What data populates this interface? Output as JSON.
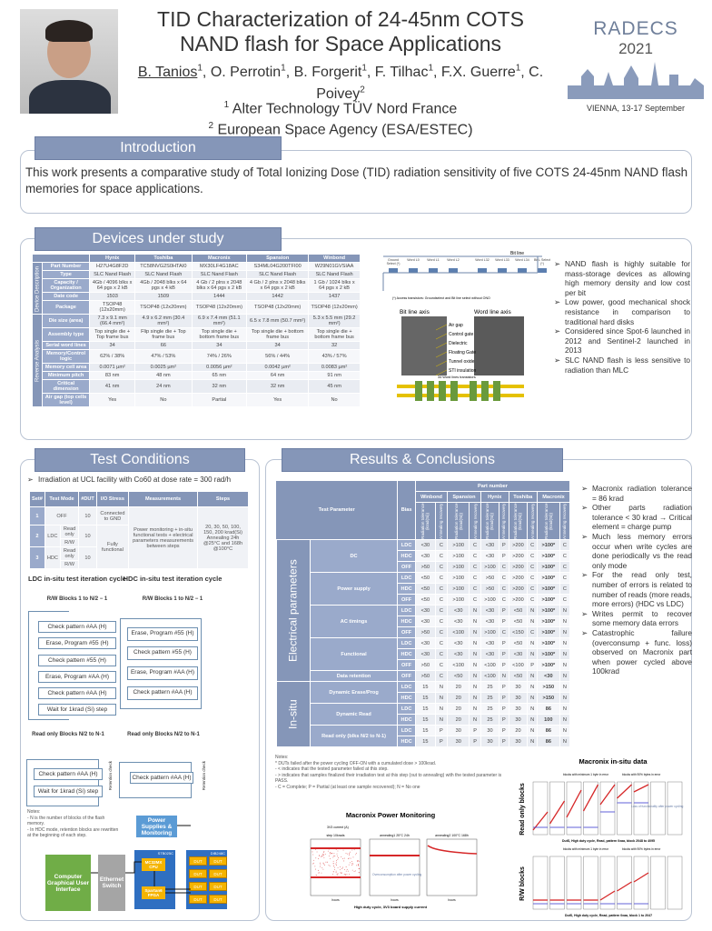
{
  "header": {
    "title": "TID Characterization of 24-45nm COTS NAND flash for Space Applications",
    "authors": [
      {
        "name": "B. Tanios",
        "sup": "1"
      },
      {
        "name": "O. Perrotin",
        "sup": "1"
      },
      {
        "name": "B. Forgerit",
        "sup": "1"
      },
      {
        "name": "F. Tilhac",
        "sup": "1"
      },
      {
        "name": "F.X. Guerre",
        "sup": "1"
      },
      {
        "name": "C. Poivey",
        "sup": "2"
      }
    ],
    "affiliations": [
      {
        "sup": "1",
        "name": "Alter Technology TÜV Nord France"
      },
      {
        "sup": "2",
        "name": "European Space Agency (ESA/ESTEC)"
      }
    ],
    "conference": {
      "name": "RADECS",
      "year": "2021",
      "location": "VIENNA, 13-17 September"
    }
  },
  "intro": {
    "heading": "Introduction",
    "text": "This work presents a comparative study of Total Ionizing Dose (TID) radiation sensitivity of five COTS 24-45nm NAND flash memories for space applications."
  },
  "devices": {
    "heading": "Devices under study",
    "columns": [
      "Hynix",
      "Toshiba",
      "Macronix",
      "Spansion",
      "Winbond"
    ],
    "sections": [
      {
        "label": "Device Description",
        "rows": [
          {
            "label": "Part Number",
            "values": [
              "H27U4G8F2D",
              "TC58NVG2S0HTAI0",
              "MX30LF4G18AC",
              "S34ML04G200TFI00",
              "W29N01GVSIAA"
            ]
          },
          {
            "label": "Type",
            "values": [
              "SLC Nand Flash",
              "SLC Nand Flash",
              "SLC Nand Flash",
              "SLC Nand Flash",
              "SLC Nand Flash"
            ]
          },
          {
            "label": "Capacity / Organization",
            "values": [
              "4Gb / 4096 blks x 64 pgs x 2 kB",
              "4Gb / 2048 blks x 64 pgs x 4 kB",
              "4 Gb / 2 plns x 2048 blks x 64 pgs x 2 kB",
              "4 Gb / 2 plns x 2048 blks x 64 pgs x 2 kB",
              "1 Gb / 1024 blks x 64 pgs x 2 kB"
            ]
          },
          {
            "label": "Date code",
            "values": [
              "1503",
              "1509",
              "1444",
              "1442",
              "1437"
            ]
          },
          {
            "label": "Package",
            "values": [
              "TSOP48 (12x20mm)",
              "TSOP48 (12x20mm)",
              "TSOP48 (12x20mm)",
              "TSOP48 (12x20mm)",
              "TSOP48 (12x20mm)"
            ]
          }
        ]
      },
      {
        "label": "Reverse Analysis",
        "rows": [
          {
            "label": "Die size (area)",
            "values": [
              "7.3 x 9.1 mm (66.4 mm²)",
              "4.9 x 6.2 mm (30.4 mm²)",
              "6.9 x 7.4 mm (51.1 mm²)",
              "6.5 x 7.8 mm (50.7 mm²)",
              "5.3 x 5.5 mm (29.2 mm²)"
            ]
          },
          {
            "label": "Assembly type",
            "values": [
              "Top single die + Top frame bus",
              "Flip single die + Top frame bus",
              "Top single die + bottom frame bus",
              "Top single die + bottom frame bus",
              "Top single die + bottom frame bus"
            ]
          },
          {
            "label": "Serial word lines",
            "values": [
              "34",
              "66",
              "34",
              "34",
              "32"
            ]
          },
          {
            "label": "Memory/Control logic",
            "values": [
              "62% / 38%",
              "47% / 53%",
              "74% / 26%",
              "56% / 44%",
              "43% / 57%"
            ]
          },
          {
            "label": "Memory cell area",
            "values": [
              "0.0071 µm²",
              "0.0025 µm²",
              "0.0056 µm²",
              "0.0042 µm²",
              "0.0083 µm²"
            ]
          },
          {
            "label": "Minimum pitch",
            "values": [
              "83 nm",
              "48 nm",
              "65 nm",
              "64 nm",
              "91 nm"
            ]
          },
          {
            "label": "Critical dimension",
            "values": [
              "41 nm",
              "24 nm",
              "32 nm",
              "32 nm",
              "45 nm"
            ]
          },
          {
            "label": "Air gap (top cells level)",
            "values": [
              "Yes",
              "No",
              "Partial",
              "Yes",
              "No"
            ]
          }
        ]
      }
    ],
    "figure": {
      "bit_line": "Bit line",
      "cells": [
        "Ground Select (*)",
        "Word L0",
        "Word L1",
        "Word L2",
        "Word L32",
        "Word L33",
        "Word L34",
        "Bit L Select (*)"
      ],
      "note": "(*) Access transistors: Groundselect and Bit line select without ONO",
      "bl_axis": "Bit line axis",
      "wl_axis": "Word line axis",
      "layers": [
        "Air gap",
        "Control gate",
        "Dielectric",
        "Floating Gate",
        "Tunnel oxide",
        "STI insulation"
      ],
      "bottom_label": "34 Word lines transistors"
    },
    "bullets": [
      "NAND flash is highly suitable for mass-storage devices as allowing high memory density and low cost per bit",
      "Low power, good mechanical shock resistance in comparison to traditional hard disks",
      "Considered since Spot-6 launched in 2012 and Sentinel-2 launched in 2013",
      "SLC NAND flash is less sensitive to radiation than MLC"
    ]
  },
  "test": {
    "heading": "Test Conditions",
    "bullet": "Irradiation at UCL facility with Co60 at dose rate = 300 rad/h",
    "table": {
      "headers": [
        "Set#",
        "Test Mode",
        "#DUT",
        "I/O Stress",
        "Measurements",
        "Steps"
      ],
      "set1": "1",
      "set2": "2",
      "set3": "3",
      "off": "OFF",
      "ldc": "LDC",
      "hdc": "HDC",
      "read_only": "Read only",
      "rw": "R/W",
      "dut1": "10",
      "dut2": "10",
      "dut3": "10",
      "io1": "Connected to GND",
      "io2": "Fully functional",
      "meas": "Power monitoring + in-situ functional tests + electrical parameters measurements between steps",
      "steps": "20, 30, 50, 100, 150, 200 krad(Si) Annealing 24h @25°C and 168h @100°C"
    },
    "ldc_title": "LDC in-situ test iteration cycle",
    "hdc_title": "HDC in-situ test iteration cycle",
    "rw_blocks": "R/W Blocks 1 to N/2 − 1",
    "ro_blocks": "Read only Blocks N/2 to N-1",
    "ldc_steps": [
      "Check pattern #AA (H)",
      "Erase, Program #55 (H)",
      "Check pattern #55 (H)",
      "Erase, Program #AA (H)",
      "Check pattern #AA (H)",
      "Wait for 1krad (Si) step"
    ],
    "hdc_steps": [
      "Erase, Program #55 (H)",
      "Check pattern #55 (H)",
      "Erase, Program #AA (H)",
      "Check pattern #AA (H)"
    ],
    "ldc_ro": [
      "Check pattern #AA (H)",
      "Wait for 1krad (Si) step"
    ],
    "hdc_ro": [
      "Check pattern #AA (H)"
    ],
    "retention": "Retention check",
    "notes_title": "Notes:",
    "notes": [
      "N is the number of blocks of the flash memory.",
      "In HDC mode, retention blocks are rewritten at the beginning of each step."
    ],
    "diagram": {
      "gui": "Computer Graphical User Interface",
      "switch": "Ethernet Switch",
      "power": "Power Supplies & Monitoring",
      "board": "STB025C",
      "cpu": "MC32MX CPU",
      "fpga": "Spartan6 FPGA",
      "dib": "DIB248C",
      "dut": "DUT"
    }
  },
  "results": {
    "heading": "Results & Conclusions",
    "part_number": "Part number",
    "test_parameter": "Test Parameter",
    "bias": "Bias",
    "vendors": [
      "Winbond",
      "Spansion",
      "Hynix",
      "Toshiba",
      "Macronix"
    ],
    "subcols": [
      "Radiation tolerance (krad(Si))",
      "Annealing recovery"
    ],
    "groups": [
      {
        "label": "Electrical parameters",
        "params": [
          {
            "name": "DC",
            "rows": [
              {
                "bias": "LDC",
                "values": [
                  "<30",
                  "C",
                  ">100",
                  "C",
                  "<30",
                  "P",
                  ">200",
                  "C",
                  ">100*",
                  "C"
                ]
              },
              {
                "bias": "HDC",
                "values": [
                  "<30",
                  "C",
                  ">100",
                  "C",
                  "<30",
                  "P",
                  ">200",
                  "C",
                  ">100*",
                  "C"
                ]
              },
              {
                "bias": "OFF",
                "values": [
                  ">50",
                  "C",
                  ">100",
                  "C",
                  ">100",
                  "C",
                  ">200",
                  "C",
                  ">100*",
                  "C"
                ]
              }
            ]
          },
          {
            "name": "Power supply",
            "rows": [
              {
                "bias": "LDC",
                "values": [
                  "<50",
                  "C",
                  ">100",
                  "C",
                  ">50",
                  "C",
                  ">200",
                  "C",
                  ">100*",
                  "C"
                ]
              },
              {
                "bias": "HDC",
                "values": [
                  "<50",
                  "C",
                  ">100",
                  "C",
                  ">50",
                  "C",
                  ">200",
                  "C",
                  ">100*",
                  "C"
                ]
              },
              {
                "bias": "OFF",
                "values": [
                  "<50",
                  "C",
                  ">100",
                  "C",
                  ">100",
                  "C",
                  ">200",
                  "C",
                  ">100*",
                  "C"
                ]
              }
            ]
          },
          {
            "name": "AC timings",
            "rows": [
              {
                "bias": "LDC",
                "values": [
                  "<30",
                  "C",
                  "<30",
                  "N",
                  "<30",
                  "P",
                  "<50",
                  "N",
                  ">100*",
                  "N"
                ]
              },
              {
                "bias": "HDC",
                "values": [
                  "<30",
                  "C",
                  "<30",
                  "N",
                  "<30",
                  "P",
                  "<50",
                  "N",
                  ">100*",
                  "N"
                ]
              },
              {
                "bias": "OFF",
                "values": [
                  ">50",
                  "C",
                  "<100",
                  "N",
                  ">100",
                  "C",
                  "<150",
                  "C",
                  ">100*",
                  "N"
                ]
              }
            ]
          },
          {
            "name": "Functional",
            "rows": [
              {
                "bias": "LDC",
                "values": [
                  "<30",
                  "C",
                  "<30",
                  "N",
                  "<30",
                  "P",
                  "<50",
                  "N",
                  ">100*",
                  "N"
                ]
              },
              {
                "bias": "HDC",
                "values": [
                  "<30",
                  "C",
                  "<30",
                  "N",
                  "<30",
                  "P",
                  "<30",
                  "N",
                  ">100*",
                  "N"
                ]
              },
              {
                "bias": "OFF",
                "values": [
                  ">50",
                  "C",
                  "<100",
                  "N",
                  "<100",
                  "P",
                  "<100",
                  "P",
                  ">100*",
                  "N"
                ]
              }
            ]
          },
          {
            "name": "Data retention",
            "rows": [
              {
                "bias": "OFF",
                "values": [
                  ">50",
                  "C",
                  "<50",
                  "N",
                  "<100",
                  "N",
                  "<50",
                  "N",
                  "<30",
                  "N"
                ]
              }
            ]
          }
        ]
      },
      {
        "label": "In-situ",
        "params": [
          {
            "name": "Dynamic Erase/Prog",
            "rows": [
              {
                "bias": "LDC",
                "values": [
                  "15",
                  "N",
                  "20",
                  "N",
                  "25",
                  "P",
                  "30",
                  "N",
                  ">150",
                  "N"
                ]
              },
              {
                "bias": "HDC",
                "values": [
                  "15",
                  "N",
                  "20",
                  "N",
                  "25",
                  "P",
                  "30",
                  "N",
                  ">150",
                  "N"
                ]
              }
            ]
          },
          {
            "name": "Dynamic Read",
            "rows": [
              {
                "bias": "LDC",
                "values": [
                  "15",
                  "N",
                  "20",
                  "N",
                  "25",
                  "P",
                  "30",
                  "N",
                  "86",
                  "N"
                ]
              },
              {
                "bias": "HDC",
                "values": [
                  "15",
                  "N",
                  "20",
                  "N",
                  "25",
                  "P",
                  "30",
                  "N",
                  "100",
                  "N"
                ]
              }
            ]
          },
          {
            "name": "Read only (blks N/2 to N-1)",
            "rows": [
              {
                "bias": "LDC",
                "values": [
                  "15",
                  "P",
                  "30",
                  "P",
                  "30",
                  "P",
                  "20",
                  "N",
                  "86",
                  "N"
                ]
              },
              {
                "bias": "HDC",
                "values": [
                  "15",
                  "P",
                  "30",
                  "P",
                  "30",
                  "P",
                  "30",
                  "N",
                  "86",
                  "N"
                ]
              }
            ]
          }
        ]
      }
    ],
    "notes_title": "Notes:",
    "notes": [
      "* DUTs failed after the power cycling OFF-ON with a cumulated dose > 100krad.",
      "- < indicates that the tested parameter failed at this step.",
      "- > indicates that samples finalized their irradiation test at this step (out to annealing) with the tested parameter is PASS.",
      "-    C = Complete; P = Partial (at least one sample recovered); N = No one"
    ],
    "bullets": [
      "Macronix radiation tolerance = 86 krad",
      "Other parts radiation tolerance < 30 krad → Critical element = charge pump",
      "Much less memory errors occur when write cycles are done periodically vs the read only mode",
      "For the read only test, number of errors is related to number of reads (more reads, more errors) (HDC vs LDC)",
      "Writes permit to recover some memory data errors",
      "Catastrophic failure (overconsump + func. loss) observed on Macronix part when power cycled above 100krad"
    ],
    "power_chart": {
      "title": "Macronix Power Monitoring",
      "legend": "3V3 current (A)",
      "panels": [
        "step 10krads",
        "annealing1 25°C 24h",
        "annealing2 100°C 168h"
      ],
      "annotation": "Overconsumption after power cycling",
      "xlabel": "hours",
      "caption": "High duty cycle, 3V3 board supply current",
      "color": "#d62728"
    },
    "insitu_chart": {
      "title": "Macronix in-situ data",
      "legend": [
        "blocks with minimum 1 byte in error",
        "blocks with 90% bytes in error"
      ],
      "row_labels": [
        "Read only blocks",
        "R/W blocks"
      ],
      "captions": [
        "DutS, High duty cycle, Read, pattern 0xaa, block 2048 to 4095",
        "DutS, High duty cycle, Read, pattern 0xaa, block 1 to 2047"
      ],
      "annotation": "Loss of functionality after power cycling",
      "colors": [
        "#d62728",
        "#3b3bd0"
      ]
    }
  }
}
